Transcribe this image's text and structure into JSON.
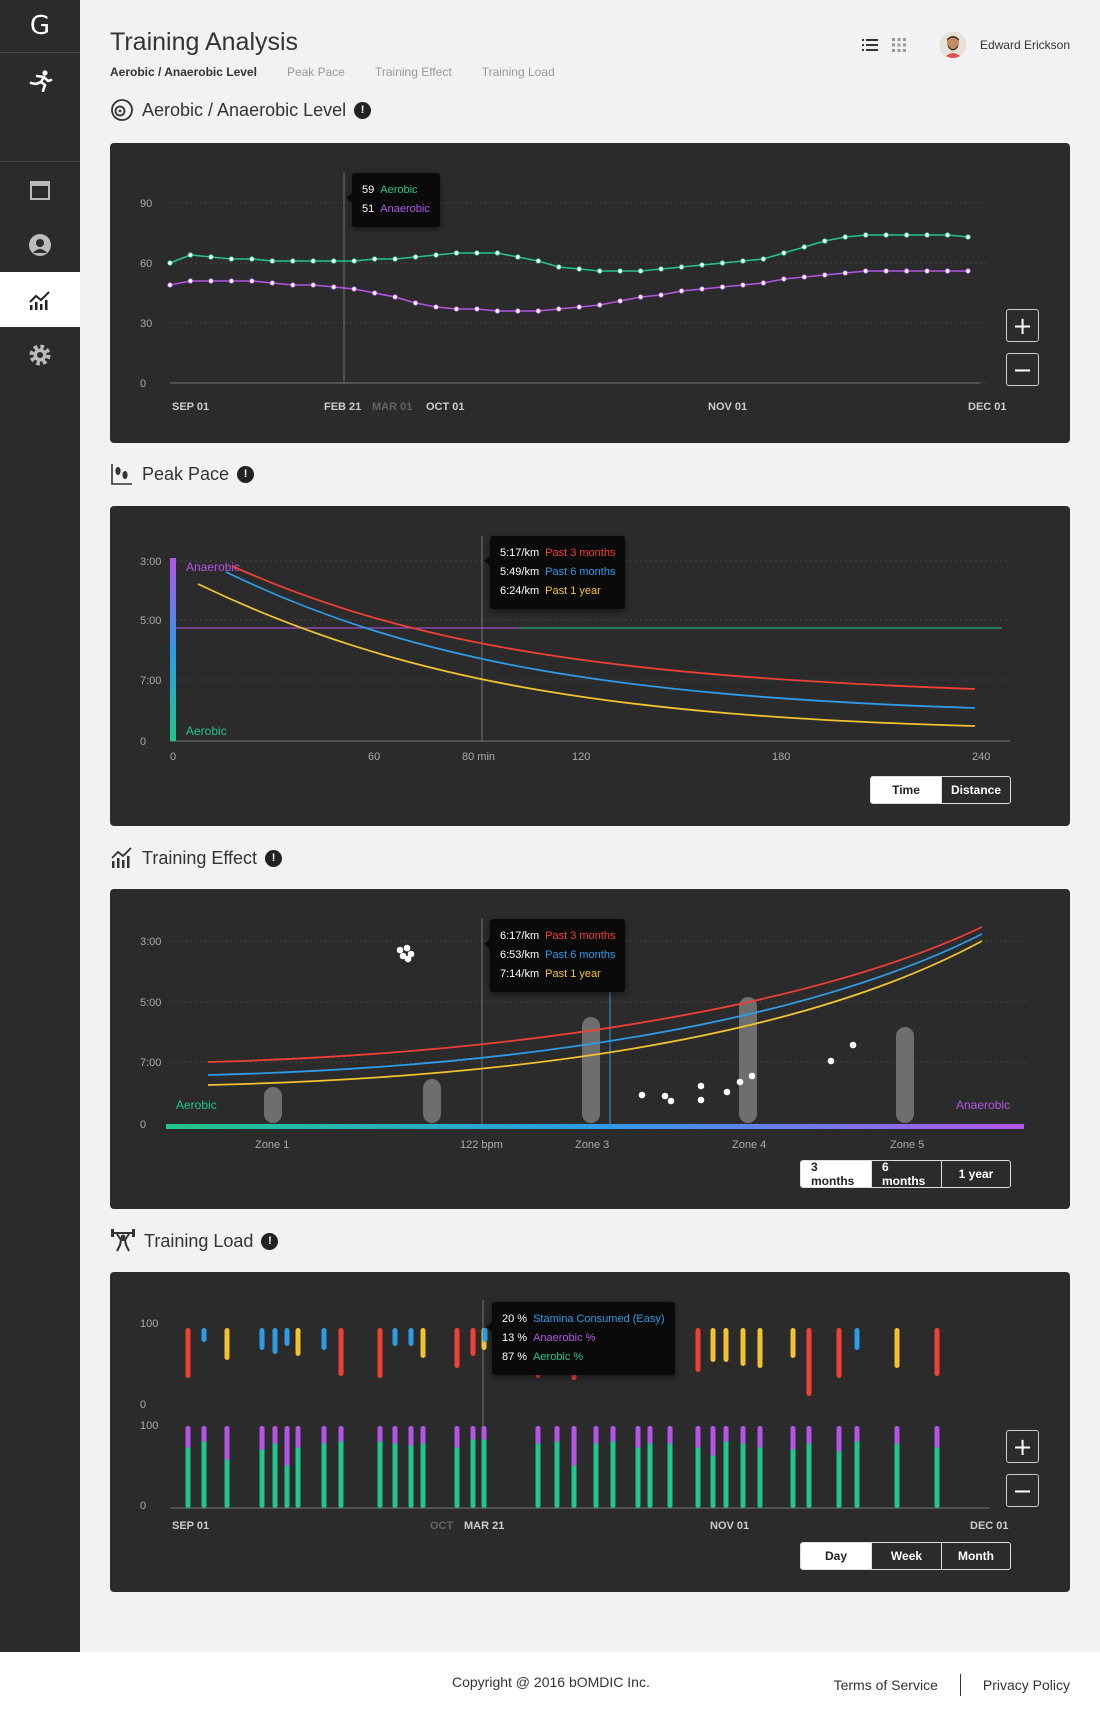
{
  "app": {
    "logo": "G"
  },
  "header": {
    "title": "Training Analysis",
    "tabs": [
      "Aerobic / Anaerobic Level",
      "Peak Pace",
      "Training Effect",
      "Training Load"
    ],
    "user_name": "Edward Erickson"
  },
  "sidebar": {
    "items": [
      {
        "icon": "running-icon",
        "active": false
      },
      {
        "icon": "calendar-icon",
        "active": false
      },
      {
        "icon": "profile-icon",
        "active": false
      },
      {
        "icon": "analytics-icon",
        "active": true
      },
      {
        "icon": "settings-gear-icon",
        "active": false
      }
    ]
  },
  "sections": {
    "aerobic": {
      "title": "Aerobic / Anaerobic Level",
      "tooltip": {
        "v1": "59",
        "l1": "Aerobic",
        "v2": "51",
        "l2": "Anaerobic"
      }
    },
    "peak": {
      "title": "Peak Pace",
      "tooltip": {
        "v1": "5:17/km",
        "l1": "Past 3 months",
        "v2": "5:49/km",
        "l2": "Past 6 months",
        "v3": "6:24/km",
        "l3": "Past 1 year"
      },
      "toggle": [
        "Time",
        "Distance"
      ]
    },
    "effect": {
      "title": "Training Effect",
      "tooltip": {
        "v1": "6:17/km",
        "l1": "Past 3 months",
        "v2": "6:53/km",
        "l2": "Past 6 months",
        "v3": "7:14/km",
        "l3": "Past 1 year"
      },
      "toggle": [
        "3 months",
        "6 months",
        "1 year"
      ]
    },
    "load": {
      "title": "Training Load",
      "tooltip": {
        "v1": "20 %",
        "l1": "Stamina Consumed (Easy)",
        "v2": "13 %",
        "l2": "Anaerobic %",
        "v3": "87 %",
        "l3": "Aerobic %"
      },
      "toggle": [
        "Day",
        "Week",
        "Month"
      ]
    }
  },
  "colors": {
    "aerobic": "#22c58b",
    "anaerobic": "#b455e6",
    "red": "#ee4035",
    "blue": "#2e9be6",
    "yellow": "#f2c230"
  },
  "chart_data": [
    {
      "type": "line",
      "title": "Aerobic / Anaerobic Level",
      "x_ticks": [
        "SEP 01",
        "FEB 21",
        "MAR 01",
        "OCT 01",
        "NOV 01",
        "DEC 01"
      ],
      "ylim": [
        0,
        90
      ],
      "y_ticks": [
        "90",
        "60",
        "30",
        "0"
      ],
      "series": [
        {
          "name": "Aerobic",
          "values": [
            60,
            64,
            63,
            62,
            62,
            61,
            61,
            61,
            61,
            61,
            62,
            62,
            63,
            64,
            65,
            65,
            65,
            63,
            61,
            58,
            57,
            56,
            56,
            56,
            57,
            58,
            59,
            60,
            61,
            62,
            65,
            68,
            71,
            73,
            74,
            74,
            74,
            74,
            74,
            73
          ]
        },
        {
          "name": "Anaerobic",
          "values": [
            49,
            51,
            51,
            51,
            51,
            50,
            49,
            49,
            48,
            47,
            45,
            43,
            40,
            38,
            37,
            37,
            36,
            36,
            36,
            37,
            38,
            39,
            41,
            43,
            44,
            46,
            47,
            48,
            49,
            50,
            52,
            53,
            54,
            55,
            56,
            56,
            56,
            56,
            56,
            56
          ]
        }
      ],
      "grid": true
    },
    {
      "type": "line",
      "title": "Peak Pace",
      "x_ticks": [
        "0",
        "60",
        "80 min",
        "120",
        "180",
        "240"
      ],
      "y_ticks": [
        "3:00",
        "5:00",
        "7:00",
        "0"
      ],
      "series": [
        {
          "name": "Past 3 months"
        },
        {
          "name": "Past 6 months"
        },
        {
          "name": "Past 1 year"
        }
      ],
      "annotations": [
        "Anaerobic",
        "Aerobic"
      ]
    },
    {
      "type": "line",
      "title": "Training Effect",
      "x_ticks": [
        "Zone 1",
        "122 bpm",
        "Zone 3",
        "Zone 4",
        "Zone 5"
      ],
      "y_ticks": [
        "3:00",
        "5:00",
        "7:00",
        "0"
      ],
      "series": [
        {
          "name": "Past 3 months"
        },
        {
          "name": "Past 6 months"
        },
        {
          "name": "Past 1 year"
        }
      ],
      "annotations": [
        "Aerobic",
        "Anaerobic"
      ]
    },
    {
      "type": "bar",
      "title": "Training Load",
      "x_ticks": [
        "SEP 01",
        "OCT",
        "MAR 21",
        "NOV 01",
        "DEC 01"
      ],
      "y_ticks_top": [
        "100",
        "0"
      ],
      "y_ticks_bottom": [
        "100",
        "0"
      ]
    }
  ],
  "footer": {
    "copyright": "Copyright @ 2016 bOMDIC Inc.",
    "terms": "Terms of Service",
    "privacy": "Privacy Policy"
  }
}
